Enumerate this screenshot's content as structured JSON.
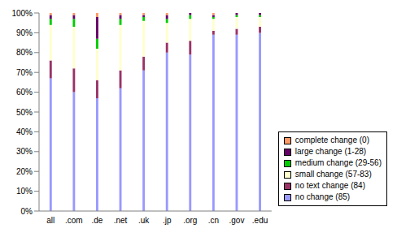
{
  "chart_data": {
    "type": "bar",
    "stacked": true,
    "legend": "lower right",
    "grid": false,
    "categories": [
      "all",
      ".com",
      ".de",
      ".net",
      ".uk",
      ".jp",
      ".org",
      ".cn",
      ".gov",
      ".edu"
    ],
    "ylim": [
      0,
      100
    ],
    "yticks": [
      {
        "value": 0,
        "label": "0%"
      },
      {
        "value": 10,
        "label": "10%"
      },
      {
        "value": 20,
        "label": "20%"
      },
      {
        "value": 30,
        "label": "30%"
      },
      {
        "value": 40,
        "label": "40%"
      },
      {
        "value": 50,
        "label": "50%"
      },
      {
        "value": 60,
        "label": "60%"
      },
      {
        "value": 70,
        "label": "70%"
      },
      {
        "value": 80,
        "label": "80%"
      },
      {
        "value": 90,
        "label": "90%"
      },
      {
        "value": 100,
        "label": "100%"
      }
    ],
    "series": [
      {
        "name": "no change (85)",
        "color": "#9999ff",
        "values": [
          67,
          60,
          57,
          62,
          71,
          80,
          79,
          89,
          89,
          90
        ]
      },
      {
        "name": "no text change (84)",
        "color": "#993366",
        "values": [
          9,
          12,
          9,
          9,
          7,
          5,
          7,
          2,
          3,
          3
        ]
      },
      {
        "name": "small change (57-83)",
        "color": "#ffffcc",
        "values": [
          18,
          21,
          16,
          23,
          18,
          10,
          11,
          6,
          6,
          5
        ]
      },
      {
        "name": "medium change (29-56)",
        "color": "#00cc00",
        "values": [
          3,
          4,
          5,
          3,
          2,
          2,
          2,
          1,
          1,
          1
        ]
      },
      {
        "name": "large change (1-28)",
        "color": "#660066",
        "values": [
          2,
          2,
          11,
          2,
          1,
          2,
          1,
          1,
          1,
          1
        ]
      },
      {
        "name": "complete change (0)",
        "color": "#ff9966",
        "values": [
          1,
          1,
          2,
          1,
          1,
          1,
          0,
          1,
          0,
          0
        ]
      }
    ]
  }
}
